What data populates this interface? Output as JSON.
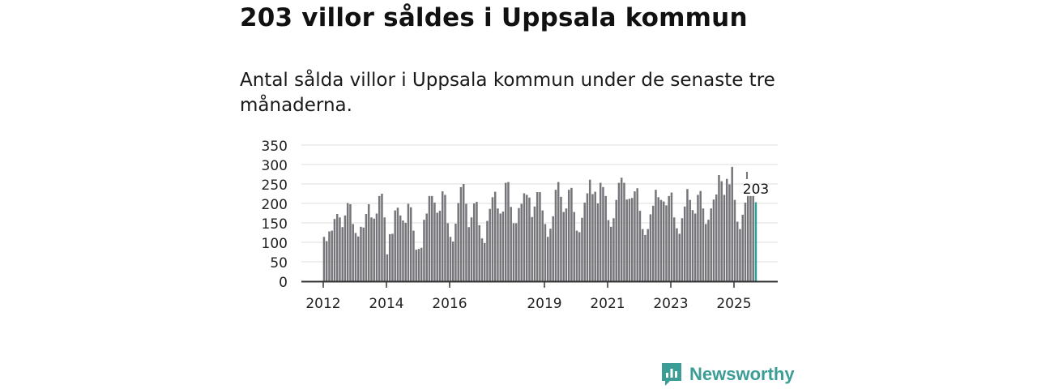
{
  "title": "203 villor såldes i Uppsala kommun",
  "subtitle": "Antal sålda villor i Uppsala kommun under de senaste tre månaderna.",
  "brand": {
    "name": "Newsworthy",
    "color": "#3c9d96"
  },
  "chart_data": {
    "type": "bar",
    "title": "",
    "xlabel": "",
    "ylabel": "",
    "ylim": [
      0,
      350
    ],
    "yticks": [
      0,
      50,
      100,
      150,
      200,
      250,
      300,
      350
    ],
    "xtick_labels": [
      {
        "label": "2012",
        "month_index": 0
      },
      {
        "label": "2014",
        "month_index": 24
      },
      {
        "label": "2016",
        "month_index": 48
      },
      {
        "label": "2019",
        "month_index": 84
      },
      {
        "label": "2021",
        "month_index": 108
      },
      {
        "label": "2023",
        "month_index": 132
      },
      {
        "label": "2025",
        "month_index": 156
      }
    ],
    "start": "2012-01",
    "frequency": "monthly",
    "grid": true,
    "bar_color": "#76757a",
    "highlight_color": "#2aa198",
    "highlight_label": "203",
    "values": [
      114,
      103,
      128,
      130,
      160,
      173,
      164,
      139,
      169,
      201,
      198,
      147,
      124,
      115,
      140,
      138,
      173,
      198,
      164,
      161,
      174,
      219,
      225,
      164,
      69,
      121,
      122,
      182,
      189,
      169,
      156,
      150,
      199,
      190,
      130,
      81,
      83,
      86,
      158,
      174,
      219,
      219,
      202,
      176,
      181,
      231,
      222,
      149,
      114,
      102,
      148,
      201,
      242,
      250,
      199,
      139,
      164,
      200,
      204,
      144,
      110,
      98,
      155,
      186,
      216,
      230,
      187,
      174,
      179,
      253,
      255,
      191,
      149,
      149,
      188,
      199,
      226,
      222,
      215,
      165,
      192,
      229,
      229,
      182,
      147,
      114,
      135,
      167,
      235,
      255,
      217,
      178,
      187,
      235,
      240,
      178,
      130,
      126,
      163,
      202,
      226,
      261,
      224,
      230,
      200,
      253,
      242,
      219,
      157,
      140,
      162,
      209,
      253,
      266,
      253,
      210,
      212,
      214,
      231,
      239,
      181,
      134,
      119,
      134,
      172,
      194,
      235,
      216,
      209,
      205,
      195,
      219,
      228,
      164,
      136,
      122,
      162,
      192,
      237,
      209,
      183,
      174,
      222,
      232,
      187,
      147,
      158,
      187,
      210,
      223,
      273,
      257,
      222,
      263,
      249,
      294,
      209,
      153,
      134,
      171,
      202,
      219,
      219,
      219,
      203
    ]
  }
}
